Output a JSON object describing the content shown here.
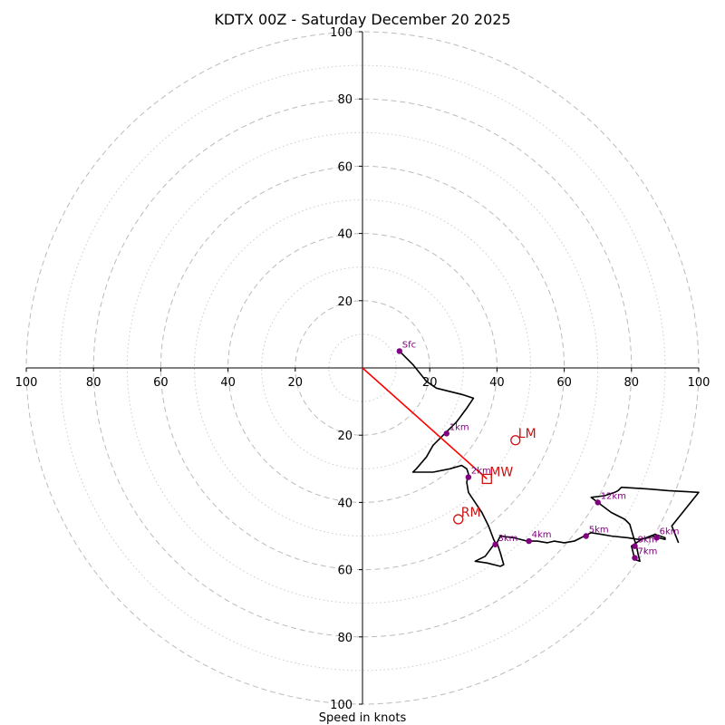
{
  "chart_data": {
    "type": "hodograph",
    "title": "KDTX 00Z - Saturday December 20 2025",
    "xlabel": "Speed in knots",
    "units": "knots",
    "range": [
      -100,
      100
    ],
    "major_rings": [
      20,
      40,
      60,
      80,
      100
    ],
    "minor_rings": [
      10,
      30,
      50,
      70,
      90
    ],
    "x_tick_labels": [
      "100",
      "80",
      "60",
      "40",
      "20",
      "20",
      "40",
      "60",
      "80",
      "100"
    ],
    "x_tick_values": [
      -100,
      -80,
      -60,
      -40,
      -20,
      20,
      40,
      60,
      80,
      100
    ],
    "y_tick_labels": [
      "100",
      "80",
      "60",
      "40",
      "20",
      "20",
      "40",
      "60",
      "80",
      "100"
    ],
    "y_tick_values": [
      100,
      80,
      60,
      40,
      20,
      -20,
      -40,
      -60,
      -80,
      -100
    ],
    "hodograph_trace": [
      [
        11,
        5
      ],
      [
        15,
        1
      ],
      [
        19,
        -4
      ],
      [
        22,
        -6
      ],
      [
        30,
        -8
      ],
      [
        33,
        -9
      ],
      [
        31,
        -12
      ],
      [
        28,
        -16
      ],
      [
        24.5,
        -19.5
      ],
      [
        21,
        -23
      ],
      [
        19,
        -26.5
      ],
      [
        16,
        -30
      ],
      [
        15,
        -31
      ],
      [
        21,
        -31
      ],
      [
        26,
        -30
      ],
      [
        29.5,
        -29
      ],
      [
        31,
        -30
      ],
      [
        31.5,
        -31.5
      ],
      [
        31,
        -34
      ],
      [
        31.5,
        -37
      ],
      [
        33.5,
        -40
      ],
      [
        35.5,
        -43
      ],
      [
        37.5,
        -47
      ],
      [
        39,
        -51
      ],
      [
        39.5,
        -52
      ],
      [
        38,
        -54
      ],
      [
        36.5,
        -56
      ],
      [
        33.5,
        -57.5
      ],
      [
        37,
        -58
      ],
      [
        41,
        -59
      ],
      [
        42,
        -58.5
      ],
      [
        41,
        -55
      ],
      [
        40,
        -52
      ],
      [
        41,
        -50
      ],
      [
        45,
        -50.5
      ],
      [
        49,
        -51.5
      ],
      [
        52,
        -51.5
      ],
      [
        55,
        -52
      ],
      [
        57,
        -51.5
      ],
      [
        60,
        -52
      ],
      [
        63,
        -51.5
      ],
      [
        66,
        -50
      ],
      [
        68,
        -49
      ],
      [
        71,
        -49.5
      ],
      [
        74,
        -50
      ],
      [
        79,
        -50.5
      ],
      [
        82,
        -51
      ],
      [
        85,
        -50.5
      ],
      [
        86,
        -50
      ],
      [
        88,
        -50.5
      ],
      [
        90,
        -51
      ],
      [
        90,
        -50.5
      ],
      [
        87,
        -49.5
      ],
      [
        83,
        -51
      ],
      [
        80,
        -53
      ],
      [
        80.5,
        -55
      ],
      [
        81,
        -57
      ],
      [
        82.5,
        -57.5
      ],
      [
        82,
        -55.5
      ],
      [
        81.5,
        -53
      ],
      [
        80.5,
        -50
      ],
      [
        79.5,
        -46.5
      ],
      [
        78,
        -45
      ],
      [
        74,
        -43
      ],
      [
        70,
        -40
      ],
      [
        68,
        -38.5
      ],
      [
        72,
        -38
      ],
      [
        75,
        -37
      ],
      [
        76,
        -36.5
      ],
      [
        77,
        -35.5
      ],
      [
        85,
        -36
      ],
      [
        91,
        -36.5
      ],
      [
        100,
        -37
      ],
      [
        92,
        -47
      ],
      [
        94,
        -52
      ]
    ],
    "height_markers": [
      {
        "label": "Sfc",
        "u": 11,
        "v": 5
      },
      {
        "label": "1km",
        "u": 25,
        "v": -19.5
      },
      {
        "label": "2km",
        "u": 31.5,
        "v": -32.5
      },
      {
        "label": "3km",
        "u": 39.5,
        "v": -52.5
      },
      {
        "label": "4km",
        "u": 49.5,
        "v": -51.5
      },
      {
        "label": "5km",
        "u": 66.5,
        "v": -50
      },
      {
        "label": "6km",
        "u": 87.5,
        "v": -50.5
      },
      {
        "label": "7km",
        "u": 81,
        "v": -56.5
      },
      {
        "label": "8km",
        "u": 81,
        "v": -53
      },
      {
        "label": "12km",
        "u": 70,
        "v": -40
      }
    ],
    "storm_motions": [
      {
        "label": "LM",
        "symbol": "circle",
        "u": 45.5,
        "v": -21.5
      },
      {
        "label": "MW",
        "symbol": "square",
        "u": 37,
        "v": -33
      },
      {
        "label": "RM",
        "symbol": "circle",
        "u": 28.5,
        "v": -45
      }
    ],
    "shear_vector": {
      "from": [
        0,
        0
      ],
      "to": [
        37,
        -33
      ]
    }
  }
}
